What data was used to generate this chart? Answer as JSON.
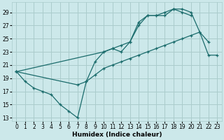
{
  "xlabel": "Humidex (Indice chaleur)",
  "bg_color": "#cce8ea",
  "grid_color": "#aacccc",
  "line_color": "#1a6b6b",
  "xlim": [
    -0.5,
    23.5
  ],
  "ylim": [
    12.5,
    30.5
  ],
  "xticks": [
    0,
    1,
    2,
    3,
    4,
    5,
    6,
    7,
    8,
    9,
    10,
    11,
    12,
    13,
    14,
    15,
    16,
    17,
    18,
    19,
    20,
    21,
    22,
    23
  ],
  "yticks": [
    13,
    15,
    17,
    19,
    21,
    23,
    25,
    27,
    29
  ],
  "line_zigzag_x": [
    0,
    1,
    2,
    3,
    4,
    5,
    6,
    7,
    8,
    9,
    10,
    11,
    12,
    13,
    14,
    15,
    16,
    17,
    18,
    19,
    20
  ],
  "line_zigzag_y": [
    20.0,
    18.5,
    17.5,
    17.0,
    16.5,
    15.0,
    14.0,
    13.0,
    18.5,
    21.5,
    23.0,
    23.5,
    23.0,
    24.5,
    27.0,
    28.5,
    28.5,
    28.5,
    29.5,
    29.0,
    28.5
  ],
  "line_upper_x": [
    0,
    10,
    11,
    12,
    13,
    14,
    15,
    16,
    17,
    18,
    19,
    20,
    21,
    22
  ],
  "line_upper_y": [
    20.0,
    23.0,
    23.5,
    24.0,
    24.5,
    27.5,
    28.5,
    28.5,
    29.0,
    29.5,
    29.5,
    29.0,
    26.0,
    24.5
  ],
  "line_lower_x": [
    0,
    7,
    8,
    9,
    10,
    11,
    12,
    13,
    14,
    15,
    16,
    17,
    18,
    19,
    20,
    21,
    22,
    23
  ],
  "line_lower_y": [
    20.0,
    18.0,
    18.5,
    19.5,
    20.5,
    21.0,
    21.5,
    22.0,
    22.5,
    23.0,
    23.5,
    24.0,
    24.5,
    25.0,
    25.5,
    26.0,
    22.5,
    22.5
  ]
}
